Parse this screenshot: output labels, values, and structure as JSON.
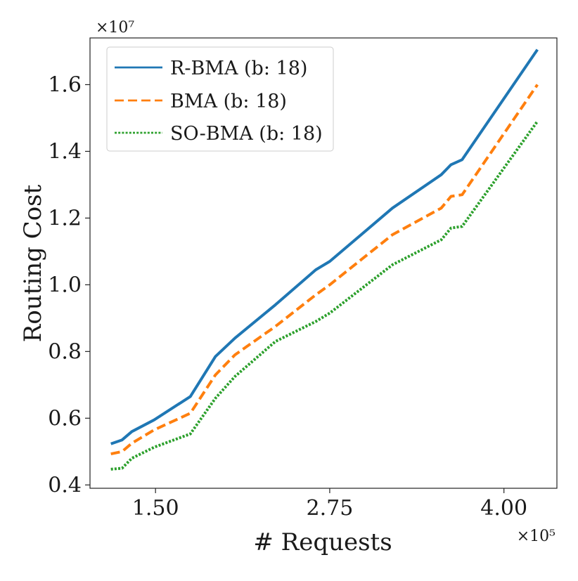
{
  "chart_data": {
    "type": "line",
    "title": "",
    "xlabel": "# Requests",
    "ylabel": "Routing Cost",
    "x_multiplier": "×10⁵",
    "y_multiplier": "×10⁷",
    "xlim": [
      1.03,
      4.38
    ],
    "ylim": [
      0.39,
      1.74
    ],
    "xticks": [
      1.5,
      2.75,
      4.0
    ],
    "xtick_labels": [
      "1.50",
      "2.75",
      "4.00"
    ],
    "yticks": [
      0.4,
      0.6,
      0.8,
      1.0,
      1.2,
      1.4,
      1.6
    ],
    "ytick_labels": [
      "0.4",
      "0.6",
      "0.8",
      "1.0",
      "1.2",
      "1.4",
      "1.6"
    ],
    "grid": false,
    "legend_position": "top-left",
    "series": [
      {
        "name": "R-BMA (b: 18)",
        "color": "#1f77b4",
        "style": "solid",
        "x": [
          1.18,
          1.26,
          1.33,
          1.49,
          1.75,
          1.93,
          2.07,
          2.36,
          2.65,
          2.75,
          3.2,
          3.55,
          3.62,
          3.7,
          4.24
        ],
        "y": [
          0.523,
          0.535,
          0.56,
          0.595,
          0.665,
          0.785,
          0.84,
          0.94,
          1.045,
          1.07,
          1.23,
          1.33,
          1.36,
          1.375,
          1.705
        ]
      },
      {
        "name": "BMA (b: 18)",
        "color": "#ff7f0e",
        "style": "dashed",
        "x": [
          1.18,
          1.26,
          1.33,
          1.49,
          1.75,
          1.93,
          2.07,
          2.36,
          2.65,
          2.75,
          3.2,
          3.55,
          3.62,
          3.7,
          4.24
        ],
        "y": [
          0.493,
          0.5,
          0.525,
          0.565,
          0.615,
          0.73,
          0.79,
          0.875,
          0.97,
          1.0,
          1.15,
          1.23,
          1.265,
          1.27,
          1.6
        ]
      },
      {
        "name": "SO-BMA (b: 18)",
        "color": "#2ca02c",
        "style": "dotted",
        "x": [
          1.18,
          1.26,
          1.33,
          1.49,
          1.75,
          1.93,
          2.07,
          2.36,
          2.65,
          2.75,
          3.2,
          3.55,
          3.62,
          3.7,
          4.24
        ],
        "y": [
          0.447,
          0.45,
          0.48,
          0.513,
          0.553,
          0.66,
          0.725,
          0.83,
          0.89,
          0.915,
          1.06,
          1.135,
          1.17,
          1.175,
          1.49
        ]
      }
    ]
  }
}
